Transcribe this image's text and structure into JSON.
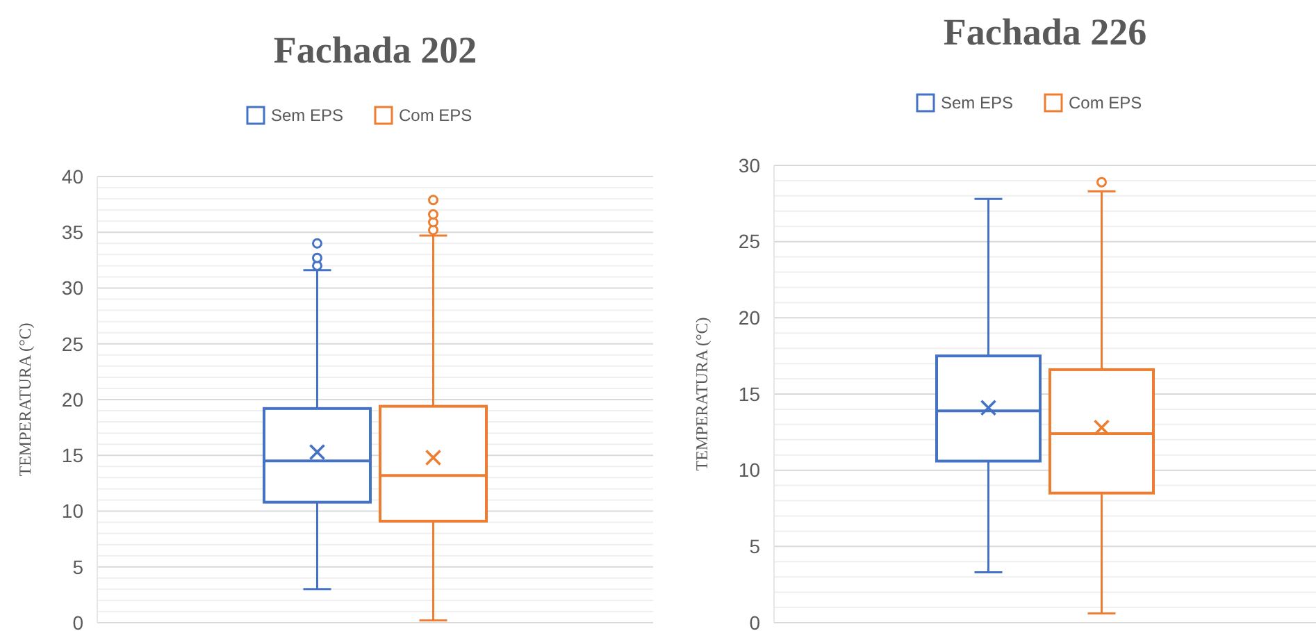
{
  "chart_data": [
    {
      "type": "box",
      "title": "Fachada 202",
      "ylabel": "TEMPERATURA (°C)",
      "categories": [
        null
      ],
      "ylim": [
        0,
        40
      ],
      "yticks": [
        0,
        5,
        10,
        15,
        20,
        25,
        30,
        35,
        40
      ],
      "grid": "y",
      "legend": "top",
      "marker": "circle",
      "series": [
        {
          "name": "Sem EPS",
          "color": "#4472c4",
          "boxes": [
            {
              "low": 3,
              "q1": 10.8,
              "median": 14.5,
              "q3": 19.2,
              "high": 31.6,
              "mean": 15.3,
              "outliers": [
                32,
                32.7,
                34
              ]
            }
          ]
        },
        {
          "name": "Com EPS",
          "color": "#ed7d31",
          "boxes": [
            {
              "low": 0.2,
              "q1": 9.1,
              "median": 13.2,
              "q3": 19.4,
              "high": 34.7,
              "mean": 14.8,
              "outliers": [
                35.2,
                35.9,
                36.6,
                37.9
              ]
            }
          ]
        }
      ]
    },
    {
      "type": "box",
      "title": "Fachada 226",
      "ylabel": "TEMPERATURA (°C)",
      "categories": [
        null
      ],
      "ylim": [
        0,
        30
      ],
      "yticks": [
        0,
        5,
        10,
        15,
        20,
        25,
        30
      ],
      "grid": "y",
      "legend": "top",
      "marker": "circle",
      "series": [
        {
          "name": "Sem EPS",
          "color": "#4472c4",
          "boxes": [
            {
              "low": 3.3,
              "q1": 10.6,
              "median": 13.9,
              "q3": 17.5,
              "high": 27.8,
              "mean": 14.1
            }
          ]
        },
        {
          "name": "Com EPS",
          "color": "#ed7d31",
          "boxes": [
            {
              "low": 0.6,
              "q1": 8.5,
              "median": 12.4,
              "q3": 16.6,
              "high": 28.3,
              "mean": 12.8,
              "outliers": [
                28.9
              ]
            }
          ]
        }
      ]
    }
  ]
}
